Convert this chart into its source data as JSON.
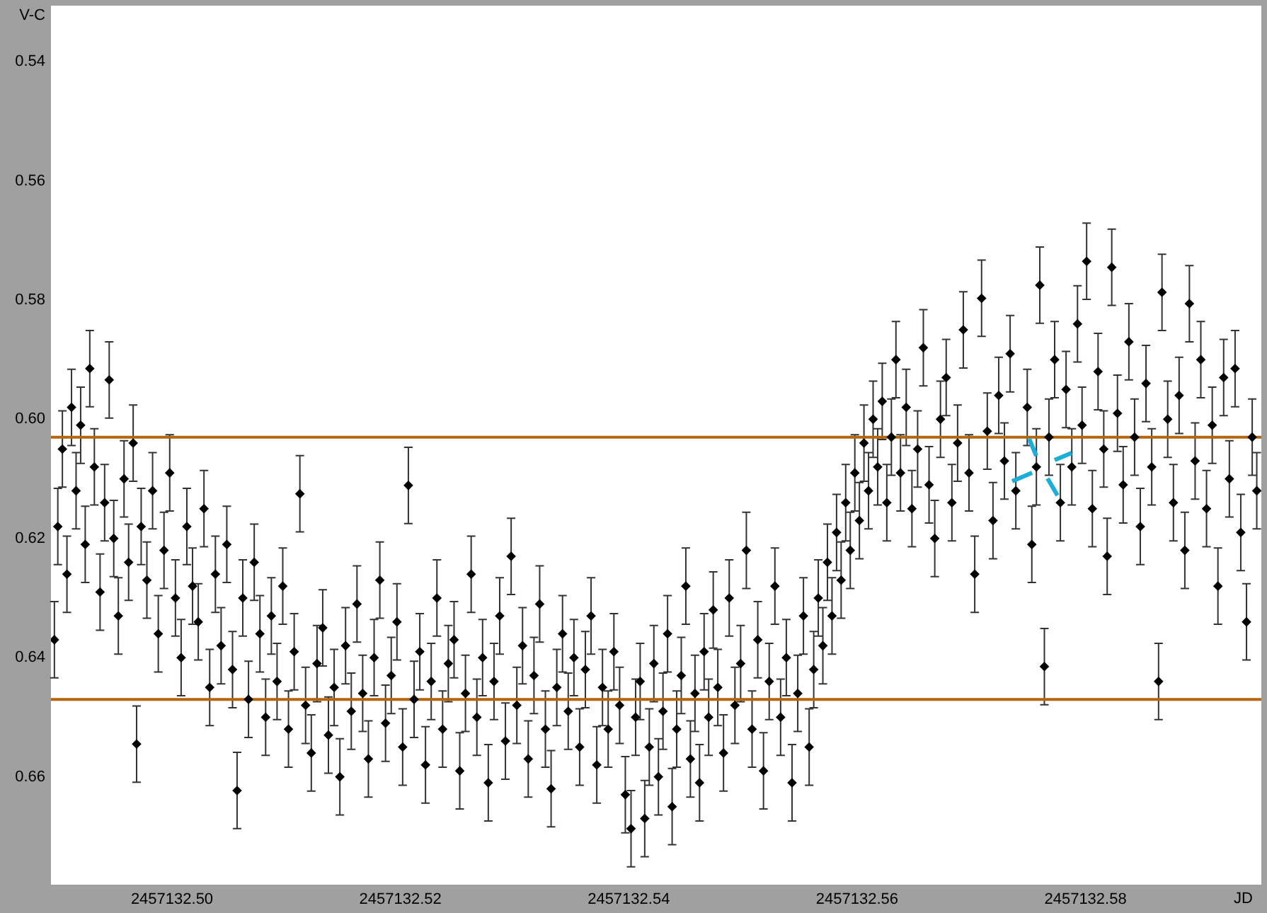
{
  "chart_data": {
    "type": "scatter",
    "xlabel": "JD",
    "ylabel": "V-C",
    "xlim": [
      2457132.4894,
      2457132.5954
    ],
    "ylim": [
      0.6781,
      0.5306
    ],
    "xticks": [
      {
        "value": 2457132.5,
        "label": "2457132.50"
      },
      2457132.52,
      2457132.54,
      2457132.56,
      2457132.58
    ],
    "yticks": [
      0.54,
      0.56,
      0.58,
      {
        "value": 0.6,
        "label": "0.60"
      },
      0.62,
      0.64,
      0.66
    ],
    "grid": false,
    "legend": false,
    "marker": "diamond",
    "color": "#000000",
    "ref_lines": [
      {
        "axis": "y",
        "value": 0.603,
        "color": "#b5650d"
      },
      {
        "axis": "y",
        "value": 0.647,
        "color": "#b5650d"
      }
    ],
    "x": [
      2457132.4897,
      2457132.49,
      2457132.4904,
      2457132.4908,
      2457132.4912,
      2457132.4916,
      2457132.492,
      2457132.4924,
      2457132.4928,
      2457132.4932,
      2457132.4937,
      2457132.4941,
      2457132.4945,
      2457132.4949,
      2457132.4953,
      2457132.4958,
      2457132.4962,
      2457132.4966,
      2457132.4969,
      2457132.4973,
      2457132.4978,
      2457132.4983,
      2457132.4988,
      2457132.4993,
      2457132.4998,
      2457132.5003,
      2457132.5008,
      2457132.5013,
      2457132.5018,
      2457132.5023,
      2457132.5028,
      2457132.5033,
      2457132.5038,
      2457132.5043,
      2457132.5048,
      2457132.5053,
      2457132.5057,
      2457132.5062,
      2457132.5067,
      2457132.5072,
      2457132.5077,
      2457132.5082,
      2457132.5087,
      2457132.5092,
      2457132.5097,
      2457132.5102,
      2457132.5107,
      2457132.5112,
      2457132.5117,
      2457132.5122,
      2457132.5127,
      2457132.5132,
      2457132.5137,
      2457132.5142,
      2457132.5147,
      2457132.5152,
      2457132.5157,
      2457132.5162,
      2457132.5167,
      2457132.5172,
      2457132.5177,
      2457132.5182,
      2457132.5187,
      2457132.5192,
      2457132.5197,
      2457132.5202,
      2457132.5207,
      2457132.5212,
      2457132.5217,
      2457132.5222,
      2457132.5227,
      2457132.5232,
      2457132.5237,
      2457132.5242,
      2457132.5247,
      2457132.5252,
      2457132.5257,
      2457132.5262,
      2457132.5267,
      2457132.5272,
      2457132.5277,
      2457132.5282,
      2457132.5287,
      2457132.5292,
      2457132.5297,
      2457132.5302,
      2457132.5307,
      2457132.5312,
      2457132.5317,
      2457132.5322,
      2457132.5327,
      2457132.5332,
      2457132.5337,
      2457132.5342,
      2457132.5347,
      2457132.5352,
      2457132.5357,
      2457132.5362,
      2457132.5367,
      2457132.5372,
      2457132.5377,
      2457132.5382,
      2457132.5387,
      2457132.5392,
      2457132.5397,
      2457132.5402,
      2457132.5406,
      2457132.541,
      2457132.5414,
      2457132.5418,
      2457132.5422,
      2457132.5426,
      2457132.543,
      2457132.5434,
      2457132.5438,
      2457132.5442,
      2457132.5446,
      2457132.545,
      2457132.5454,
      2457132.5458,
      2457132.5462,
      2457132.5466,
      2457132.547,
      2457132.5474,
      2457132.5478,
      2457132.5483,
      2457132.5488,
      2457132.5493,
      2457132.5498,
      2457132.5503,
      2457132.5508,
      2457132.5513,
      2457132.5518,
      2457132.5523,
      2457132.5528,
      2457132.5533,
      2457132.5538,
      2457132.5543,
      2457132.5548,
      2457132.5553,
      2457132.5558,
      2457132.5562,
      2457132.5566,
      2457132.557,
      2457132.5574,
      2457132.5578,
      2457132.5582,
      2457132.5586,
      2457132.559,
      2457132.5594,
      2457132.5598,
      2457132.5602,
      2457132.5606,
      2457132.561,
      2457132.5614,
      2457132.5618,
      2457132.5622,
      2457132.5626,
      2457132.563,
      2457132.5634,
      2457132.5638,
      2457132.5643,
      2457132.5648,
      2457132.5653,
      2457132.5658,
      2457132.5663,
      2457132.5668,
      2457132.5673,
      2457132.5678,
      2457132.5683,
      2457132.5688,
      2457132.5693,
      2457132.5698,
      2457132.5703,
      2457132.5709,
      2457132.5714,
      2457132.5719,
      2457132.5724,
      2457132.5729,
      2457132.5734,
      2457132.5739,
      2457132.5749,
      2457132.5753,
      2457132.5757,
      2457132.576,
      2457132.5764,
      2457132.5768,
      2457132.5773,
      2457132.5778,
      2457132.5783,
      2457132.5788,
      2457132.5793,
      2457132.5797,
      2457132.5801,
      2457132.5806,
      2457132.5811,
      2457132.5816,
      2457132.5819,
      2457132.5823,
      2457132.5828,
      2457132.5833,
      2457132.5838,
      2457132.5843,
      2457132.5848,
      2457132.5853,
      2457132.5858,
      2457132.5864,
      2457132.5867,
      2457132.5872,
      2457132.5877,
      2457132.5882,
      2457132.5887,
      2457132.5891,
      2457132.5896,
      2457132.5901,
      2457132.5906,
      2457132.5911,
      2457132.5916,
      2457132.5921,
      2457132.5926,
      2457132.5931,
      2457132.5936,
      2457132.5941,
      2457132.5946,
      2457132.595
    ],
    "values": [
      0.637,
      0.618,
      0.605,
      0.626,
      0.598,
      0.612,
      0.601,
      0.621,
      0.5915,
      0.608,
      0.629,
      0.614,
      0.5934,
      0.62,
      0.633,
      0.61,
      0.624,
      0.604,
      0.6545,
      0.618,
      0.627,
      0.612,
      0.636,
      0.622,
      0.609,
      0.63,
      0.64,
      0.618,
      0.628,
      0.634,
      0.615,
      0.645,
      0.626,
      0.638,
      0.621,
      0.642,
      0.6623,
      0.63,
      0.647,
      0.624,
      0.636,
      0.65,
      0.633,
      0.644,
      0.628,
      0.652,
      0.639,
      0.6125,
      0.648,
      0.656,
      0.641,
      0.635,
      0.653,
      0.645,
      0.66,
      0.638,
      0.649,
      0.631,
      0.646,
      0.657,
      0.64,
      0.627,
      0.651,
      0.643,
      0.634,
      0.655,
      0.6111,
      0.647,
      0.639,
      0.658,
      0.644,
      0.63,
      0.652,
      0.641,
      0.637,
      0.659,
      0.646,
      0.626,
      0.65,
      0.64,
      0.661,
      0.644,
      0.633,
      0.654,
      0.623,
      0.648,
      0.638,
      0.657,
      0.643,
      0.631,
      0.652,
      0.662,
      0.645,
      0.636,
      0.649,
      0.64,
      0.655,
      0.642,
      0.633,
      0.658,
      0.645,
      0.652,
      0.639,
      0.648,
      0.663,
      0.6687,
      0.65,
      0.644,
      0.667,
      0.655,
      0.641,
      0.66,
      0.649,
      0.636,
      0.665,
      0.652,
      0.643,
      0.628,
      0.657,
      0.646,
      0.661,
      0.639,
      0.65,
      0.632,
      0.645,
      0.656,
      0.63,
      0.648,
      0.641,
      0.622,
      0.652,
      0.637,
      0.659,
      0.644,
      0.628,
      0.65,
      0.64,
      0.661,
      0.646,
      0.633,
      0.655,
      0.642,
      0.63,
      0.638,
      0.624,
      0.633,
      0.619,
      0.627,
      0.614,
      0.622,
      0.609,
      0.617,
      0.604,
      0.612,
      0.6,
      0.608,
      0.597,
      0.614,
      0.603,
      0.59,
      0.609,
      0.598,
      0.615,
      0.605,
      0.588,
      0.611,
      0.62,
      0.6,
      0.593,
      0.614,
      0.604,
      0.585,
      0.609,
      0.626,
      0.5797,
      0.602,
      0.617,
      0.596,
      0.607,
      0.589,
      0.612,
      0.598,
      0.621,
      0.608,
      0.5775,
      0.6415,
      0.603,
      0.59,
      0.614,
      0.595,
      0.608,
      0.584,
      0.601,
      0.5735,
      0.615,
      0.592,
      0.605,
      0.623,
      0.5745,
      0.599,
      0.611,
      0.587,
      0.603,
      0.618,
      0.594,
      0.608,
      0.644,
      0.5787,
      0.6,
      0.614,
      0.596,
      0.622,
      0.5806,
      0.607,
      0.59,
      0.615,
      0.601,
      0.628,
      0.593,
      0.61,
      0.5915,
      0.619,
      0.634,
      0.603,
      0.612
    ],
    "errors": [
      0.0064,
      0.0064,
      0.0064,
      0.0064,
      0.0064,
      0.0064,
      0.0064,
      0.0064,
      0.0064,
      0.0064,
      0.0064,
      0.0064,
      0.0064,
      0.0064,
      0.0064,
      0.0064,
      0.0064,
      0.0064,
      0.0064,
      0.0064,
      0.0064,
      0.0064,
      0.0064,
      0.0064,
      0.0064,
      0.0064,
      0.0064,
      0.0064,
      0.0064,
      0.0064,
      0.0064,
      0.0064,
      0.0064,
      0.0064,
      0.0064,
      0.0064,
      0.0064,
      0.0064,
      0.0064,
      0.0064,
      0.0064,
      0.0064,
      0.0064,
      0.0064,
      0.0064,
      0.0064,
      0.0064,
      0.0064,
      0.0064,
      0.0064,
      0.0064,
      0.0064,
      0.0064,
      0.0064,
      0.0064,
      0.0064,
      0.0064,
      0.0064,
      0.0064,
      0.0064,
      0.0064,
      0.0064,
      0.0064,
      0.0064,
      0.0064,
      0.0064,
      0.0064,
      0.0064,
      0.0064,
      0.0064,
      0.0064,
      0.0064,
      0.0064,
      0.0064,
      0.0064,
      0.0064,
      0.0064,
      0.0064,
      0.0064,
      0.0064,
      0.0064,
      0.0064,
      0.0064,
      0.0064,
      0.0064,
      0.0064,
      0.0064,
      0.0064,
      0.0064,
      0.0064,
      0.0064,
      0.0064,
      0.0064,
      0.0064,
      0.0064,
      0.0064,
      0.0064,
      0.0064,
      0.0064,
      0.0064,
      0.0064,
      0.0064,
      0.0064,
      0.0064,
      0.0064,
      0.0064,
      0.0064,
      0.0064,
      0.0064,
      0.0064,
      0.0064,
      0.0064,
      0.0064,
      0.0064,
      0.0064,
      0.0064,
      0.0064,
      0.0064,
      0.0064,
      0.0064,
      0.0064,
      0.0064,
      0.0064,
      0.0064,
      0.0064,
      0.0064,
      0.0064,
      0.0064,
      0.0064,
      0.0064,
      0.0064,
      0.0064,
      0.0064,
      0.0064,
      0.0064,
      0.0064,
      0.0064,
      0.0064,
      0.0064,
      0.0064,
      0.0064,
      0.0064,
      0.0064,
      0.0064,
      0.0064,
      0.0064,
      0.0064,
      0.0064,
      0.0064,
      0.0064,
      0.0064,
      0.0064,
      0.0064,
      0.0064,
      0.0064,
      0.0064,
      0.0064,
      0.0064,
      0.0064,
      0.0064,
      0.0064,
      0.0064,
      0.0064,
      0.0064,
      0.0064,
      0.0064,
      0.0064,
      0.0064,
      0.0064,
      0.0064,
      0.0064,
      0.0064,
      0.0064,
      0.0064,
      0.0064,
      0.0064,
      0.0064,
      0.0064,
      0.0064,
      0.0064,
      0.0064,
      0.0064,
      0.0064,
      0.0064,
      0.0064,
      0.0064,
      0.0064,
      0.0064,
      0.0064,
      0.0064,
      0.0064,
      0.0064,
      0.0064,
      0.0064,
      0.0064,
      0.0064,
      0.0064,
      0.0064,
      0.0064,
      0.0064,
      0.0064,
      0.0064,
      0.0064,
      0.0064,
      0.0064,
      0.0064,
      0.0064,
      0.0064,
      0.0064,
      0.0064,
      0.0064,
      0.0064,
      0.0064,
      0.0064,
      0.0064,
      0.0064,
      0.0064,
      0.0064,
      0.0064,
      0.0064,
      0.0064,
      0.0064,
      0.0064,
      0.0064,
      0.0064
    ]
  }
}
